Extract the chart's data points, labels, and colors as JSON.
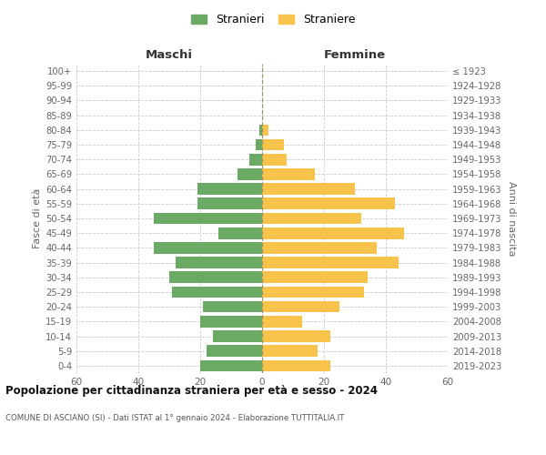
{
  "age_groups": [
    "0-4",
    "5-9",
    "10-14",
    "15-19",
    "20-24",
    "25-29",
    "30-34",
    "35-39",
    "40-44",
    "45-49",
    "50-54",
    "55-59",
    "60-64",
    "65-69",
    "70-74",
    "75-79",
    "80-84",
    "85-89",
    "90-94",
    "95-99",
    "100+"
  ],
  "birth_years": [
    "2019-2023",
    "2014-2018",
    "2009-2013",
    "2004-2008",
    "1999-2003",
    "1994-1998",
    "1989-1993",
    "1984-1988",
    "1979-1983",
    "1974-1978",
    "1969-1973",
    "1964-1968",
    "1959-1963",
    "1954-1958",
    "1949-1953",
    "1944-1948",
    "1939-1943",
    "1934-1938",
    "1929-1933",
    "1924-1928",
    "≤ 1923"
  ],
  "maschi": [
    20,
    18,
    16,
    20,
    19,
    29,
    30,
    28,
    35,
    14,
    35,
    21,
    21,
    8,
    4,
    2,
    1,
    0,
    0,
    0,
    0
  ],
  "femmine": [
    22,
    18,
    22,
    13,
    25,
    33,
    34,
    44,
    37,
    46,
    32,
    43,
    30,
    17,
    8,
    7,
    2,
    0,
    0,
    0,
    0
  ],
  "color_maschi": "#6aaa64",
  "color_femmine": "#f7c34a",
  "title_main": "Popolazione per cittadinanza straniera per età e sesso - 2024",
  "title_sub": "COMUNE DI ASCIANO (SI) - Dati ISTAT al 1° gennaio 2024 - Elaborazione TUTTITALIA.IT",
  "header_left": "Maschi",
  "header_right": "Femmine",
  "ylabel_left": "Fasce di età",
  "ylabel_right": "Anni di nascita",
  "legend_maschi": "Stranieri",
  "legend_femmine": "Straniere",
  "xlim": 60,
  "background_color": "#ffffff",
  "grid_color": "#cccccc"
}
